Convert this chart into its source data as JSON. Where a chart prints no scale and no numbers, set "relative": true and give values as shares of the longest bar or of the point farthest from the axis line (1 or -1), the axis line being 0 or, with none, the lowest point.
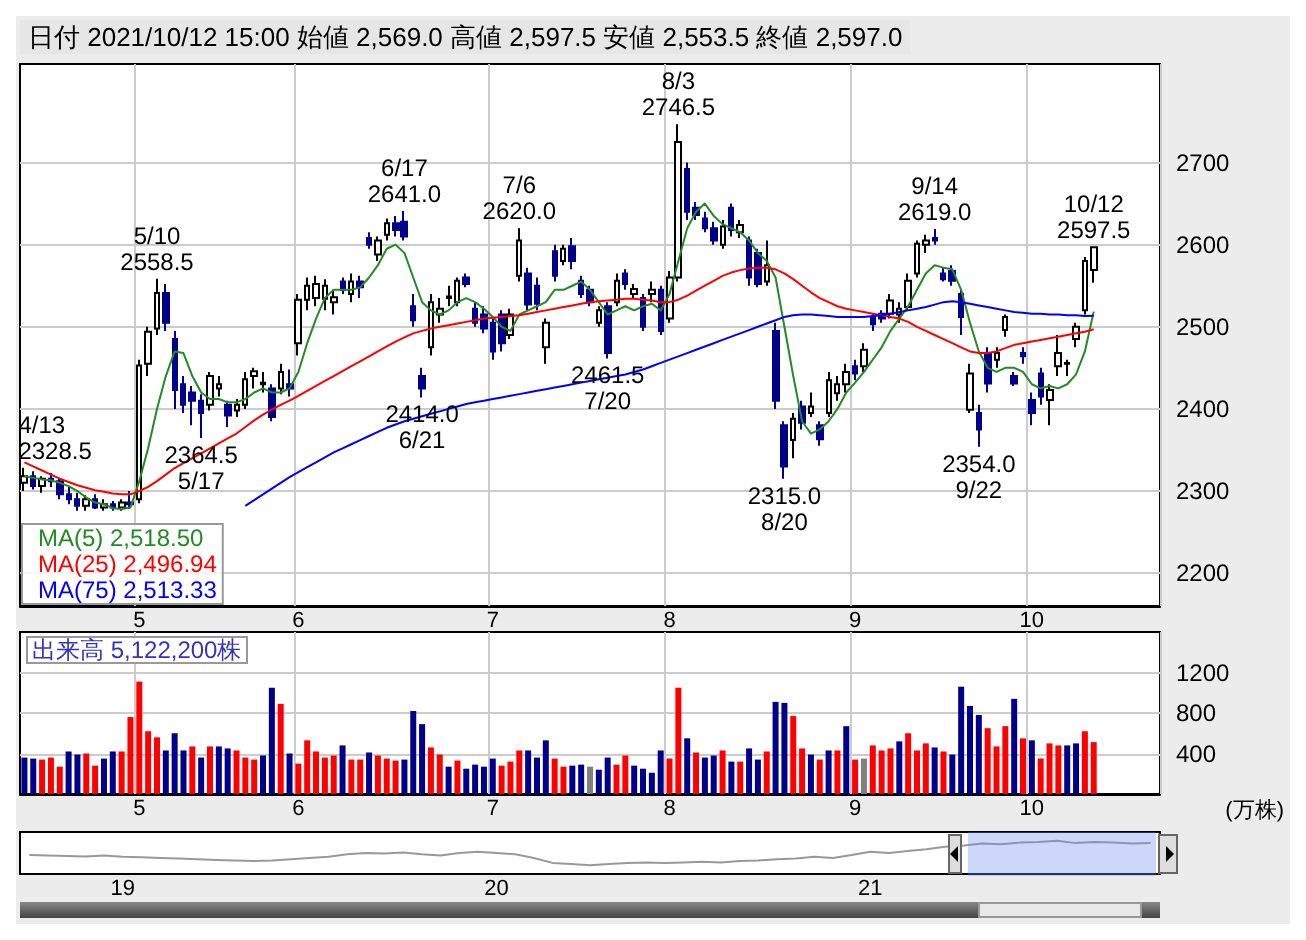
{
  "chart_data": [
    {
      "type": "candlestick",
      "title": "日付 2021/10/12 15:00 始値 2,569.0 高値 2,597.5 安値 2,553.5 終値 2,597.0",
      "categories": [
        null,
        null,
        null,
        null,
        null,
        null,
        null,
        null,
        null,
        null,
        null,
        null,
        null,
        "5",
        null,
        null,
        null,
        null,
        null,
        null,
        null,
        null,
        null,
        null,
        null,
        null,
        null,
        null,
        null,
        null,
        null,
        "6",
        null,
        null,
        null,
        null,
        null,
        null,
        null,
        null,
        null,
        null,
        null,
        null,
        null,
        null,
        null,
        null,
        null,
        null,
        null,
        null,
        null,
        "7",
        null,
        null,
        null,
        null,
        null,
        null,
        null,
        null,
        null,
        null,
        null,
        null,
        null,
        null,
        null,
        null,
        null,
        null,
        null,
        "8",
        null,
        null,
        null,
        null,
        null,
        null,
        null,
        null,
        null,
        null,
        null,
        null,
        null,
        null,
        null,
        null,
        null,
        null,
        null,
        null,
        "9",
        null,
        null,
        null,
        null,
        null,
        null,
        null,
        null,
        null,
        null,
        null,
        null,
        null,
        null,
        null,
        null,
        null,
        null,
        null,
        "10",
        null,
        null,
        null,
        null,
        null,
        null,
        null,
        null,
        null,
        null,
        null,
        null,
        null,
        null
      ],
      "ohlc": [
        [
          2310,
          2328.5,
          2300,
          2318
        ],
        [
          2318,
          2324,
          2302,
          2306
        ],
        [
          2306,
          2318,
          2298,
          2315
        ],
        [
          2315,
          2322,
          2305,
          2312
        ],
        [
          2312,
          2316,
          2290,
          2296
        ],
        [
          2296,
          2305,
          2284,
          2290
        ],
        [
          2290,
          2298,
          2276,
          2282
        ],
        [
          2282,
          2295,
          2276,
          2290
        ],
        [
          2290,
          2296,
          2278,
          2280
        ],
        [
          2280,
          2290,
          2276,
          2284
        ],
        [
          2284,
          2288,
          2276,
          2280
        ],
        [
          2280,
          2290,
          2276,
          2286
        ],
        [
          2286,
          2300,
          2278,
          2284
        ],
        [
          2290,
          2460,
          2285,
          2453
        ],
        [
          2455,
          2500,
          2440,
          2494
        ],
        [
          2498,
          2558.5,
          2490,
          2541
        ],
        [
          2541,
          2552,
          2495,
          2505
        ],
        [
          2485,
          2495,
          2400,
          2423
        ],
        [
          2430,
          2440,
          2395,
          2405
        ],
        [
          2420,
          2428,
          2380,
          2410
        ],
        [
          2410,
          2418,
          2364.5,
          2395
        ],
        [
          2405,
          2445,
          2398,
          2440
        ],
        [
          2425,
          2440,
          2415,
          2430
        ],
        [
          2405,
          2410,
          2378,
          2392
        ],
        [
          2398,
          2412,
          2390,
          2405
        ],
        [
          2405,
          2445,
          2400,
          2436
        ],
        [
          2440,
          2450,
          2425,
          2446
        ],
        [
          2430,
          2445,
          2420,
          2432
        ],
        [
          2425,
          2430,
          2385,
          2390
        ],
        [
          2425,
          2455,
          2418,
          2445
        ],
        [
          2430,
          2448,
          2415,
          2425
        ],
        [
          2480,
          2540,
          2465,
          2533
        ],
        [
          2533,
          2560,
          2520,
          2550
        ],
        [
          2535,
          2562,
          2525,
          2552
        ],
        [
          2534,
          2558,
          2520,
          2550
        ],
        [
          2530,
          2545,
          2515,
          2536
        ],
        [
          2555,
          2560,
          2540,
          2545
        ],
        [
          2540,
          2565,
          2530,
          2555
        ],
        [
          2555,
          2562,
          2535,
          2548
        ],
        [
          2608,
          2615,
          2595,
          2600
        ],
        [
          2588,
          2610,
          2580,
          2605
        ],
        [
          2612,
          2632,
          2605,
          2626
        ],
        [
          2626,
          2635,
          2610,
          2618
        ],
        [
          2628,
          2641,
          2605,
          2610
        ],
        [
          2525,
          2540,
          2500,
          2508
        ],
        [
          2440,
          2450,
          2414,
          2425
        ],
        [
          2475,
          2540,
          2465,
          2530
        ],
        [
          2515,
          2535,
          2505,
          2522
        ],
        [
          2535,
          2550,
          2525,
          2537
        ],
        [
          2530,
          2560,
          2525,
          2556
        ],
        [
          2560,
          2565,
          2548,
          2552
        ],
        [
          2522,
          2530,
          2500,
          2505
        ],
        [
          2515,
          2525,
          2492,
          2498
        ],
        [
          2505,
          2510,
          2460,
          2470
        ],
        [
          2515,
          2520,
          2470,
          2480
        ],
        [
          2490,
          2522,
          2485,
          2515
        ],
        [
          2562,
          2620,
          2555,
          2605
        ],
        [
          2565,
          2572,
          2520,
          2527
        ],
        [
          2550,
          2560,
          2520,
          2528
        ],
        [
          2475,
          2510,
          2455,
          2505
        ],
        [
          2592,
          2600,
          2555,
          2562
        ],
        [
          2580,
          2600,
          2575,
          2595
        ],
        [
          2598,
          2608,
          2570,
          2580
        ],
        [
          2556,
          2562,
          2535,
          2540
        ],
        [
          2545,
          2550,
          2525,
          2530
        ],
        [
          2505,
          2525,
          2500,
          2520
        ],
        [
          2525,
          2530,
          2461.5,
          2468
        ],
        [
          2530,
          2565,
          2525,
          2556
        ],
        [
          2565,
          2570,
          2545,
          2552
        ],
        [
          2540,
          2552,
          2535,
          2546
        ],
        [
          2535,
          2540,
          2495,
          2500
        ],
        [
          2540,
          2555,
          2530,
          2545
        ],
        [
          2545,
          2550,
          2490,
          2495
        ],
        [
          2510,
          2568,
          2505,
          2560
        ],
        [
          2560,
          2746.5,
          2555,
          2725
        ],
        [
          2692,
          2700,
          2630,
          2640
        ],
        [
          2645,
          2652,
          2630,
          2636
        ],
        [
          2632,
          2640,
          2615,
          2620
        ],
        [
          2620,
          2628,
          2600,
          2605
        ],
        [
          2600,
          2630,
          2595,
          2622
        ],
        [
          2645,
          2650,
          2610,
          2618
        ],
        [
          2615,
          2630,
          2608,
          2624
        ],
        [
          2605,
          2610,
          2550,
          2560
        ],
        [
          2590,
          2595,
          2548,
          2552
        ],
        [
          2555,
          2605,
          2550,
          2575
        ],
        [
          2495,
          2505,
          2400,
          2410
        ],
        [
          2380,
          2385,
          2315,
          2330
        ],
        [
          2362,
          2395,
          2340,
          2388
        ],
        [
          2403,
          2410,
          2375,
          2383
        ],
        [
          2395,
          2420,
          2390,
          2403
        ],
        [
          2380,
          2385,
          2355,
          2363
        ],
        [
          2395,
          2445,
          2390,
          2435
        ],
        [
          2419,
          2440,
          2410,
          2430
        ],
        [
          2430,
          2455,
          2420,
          2445
        ],
        [
          2452,
          2460,
          2435,
          2443
        ],
        [
          2452,
          2480,
          2445,
          2472
        ],
        [
          2512,
          2516,
          2495,
          2503
        ],
        [
          2516,
          2520,
          2505,
          2510
        ],
        [
          2516,
          2540,
          2510,
          2532
        ],
        [
          2515,
          2530,
          2505,
          2522
        ],
        [
          2524,
          2565,
          2520,
          2556
        ],
        [
          2565,
          2605,
          2560,
          2601
        ],
        [
          2600,
          2612,
          2590,
          2605
        ],
        [
          2608,
          2619,
          2600,
          2605
        ],
        [
          2565,
          2572,
          2555,
          2558
        ],
        [
          2568,
          2575,
          2550,
          2556
        ],
        [
          2540,
          2545,
          2490,
          2512
        ],
        [
          2399,
          2455,
          2395,
          2443
        ],
        [
          2395,
          2405,
          2354,
          2375
        ],
        [
          2468,
          2475,
          2420,
          2431
        ],
        [
          2460,
          2475,
          2450,
          2468
        ],
        [
          2496,
          2515,
          2488,
          2512
        ],
        [
          2440,
          2445,
          2428,
          2431
        ],
        [
          2468,
          2475,
          2455,
          2464
        ],
        [
          2411,
          2420,
          2380,
          2395
        ],
        [
          2443,
          2450,
          2405,
          2415
        ],
        [
          2411,
          2430,
          2380,
          2423
        ],
        [
          2452,
          2490,
          2440,
          2468
        ],
        [
          2455,
          2460,
          2440,
          2456
        ],
        [
          2485,
          2505,
          2475,
          2500
        ],
        [
          2520,
          2585,
          2515,
          2580
        ],
        [
          2569,
          2597.5,
          2553.5,
          2597
        ],
        null,
        null,
        null,
        null,
        null,
        null,
        null
      ],
      "series": [
        {
          "name": "MA(5) 2,518.50",
          "type": "line",
          "color": "#228b22",
          "values": [
            2318,
            2316,
            2314,
            2313,
            2310,
            2306,
            2300,
            2292,
            2286,
            2284,
            2279,
            2278,
            2280,
            2312,
            2352,
            2400,
            2440,
            2470,
            2468,
            2440,
            2420,
            2412,
            2412,
            2408,
            2408,
            2412,
            2420,
            2425,
            2420,
            2420,
            2425,
            2445,
            2480,
            2510,
            2535,
            2545,
            2545,
            2545,
            2548,
            2560,
            2575,
            2595,
            2600,
            2590,
            2560,
            2530,
            2520,
            2515,
            2520,
            2530,
            2535,
            2530,
            2522,
            2512,
            2500,
            2495,
            2515,
            2520,
            2525,
            2530,
            2545,
            2545,
            2550,
            2555,
            2545,
            2530,
            2515,
            2520,
            2525,
            2520,
            2525,
            2528,
            2520,
            2540,
            2580,
            2620,
            2640,
            2650,
            2635,
            2625,
            2620,
            2615,
            2605,
            2590,
            2580,
            2560,
            2500,
            2440,
            2385,
            2370,
            2375,
            2385,
            2400,
            2420,
            2432,
            2445,
            2460,
            2475,
            2495,
            2510,
            2525,
            2545,
            2565,
            2575,
            2572,
            2570,
            2545,
            2505,
            2470,
            2450,
            2445,
            2450,
            2450,
            2445,
            2430,
            2425,
            2428,
            2425,
            2430,
            2442,
            2470,
            2518.5,
            null,
            null,
            null,
            null,
            null,
            null,
            null
          ]
        },
        {
          "name": "MA(25) 2,496.94",
          "type": "line",
          "color": "#ff0000",
          "values": [
            2335,
            2330,
            2325,
            2320,
            2315,
            2311,
            2307,
            2304,
            2301,
            2299,
            2297,
            2296,
            2296,
            2300,
            2305,
            2312,
            2320,
            2328,
            2334,
            2340,
            2346,
            2352,
            2358,
            2364,
            2370,
            2378,
            2386,
            2393,
            2399,
            2405,
            2410,
            2416,
            2422,
            2428,
            2434,
            2440,
            2446,
            2452,
            2458,
            2464,
            2470,
            2476,
            2482,
            2487,
            2492,
            2495,
            2498,
            2500,
            2502,
            2504,
            2506,
            2508,
            2510,
            2511,
            2512,
            2513,
            2514,
            2516,
            2518,
            2520,
            2522,
            2524,
            2526,
            2528,
            2530,
            2531,
            2532,
            2533,
            2534,
            2534,
            2533,
            2532,
            2530,
            2530,
            2533,
            2538,
            2544,
            2550,
            2556,
            2562,
            2566,
            2569,
            2571,
            2572,
            2572,
            2570,
            2565,
            2558,
            2550,
            2542,
            2535,
            2530,
            2525,
            2522,
            2520,
            2518,
            2516,
            2514,
            2512,
            2510,
            2506,
            2500,
            2495,
            2490,
            2485,
            2480,
            2475,
            2470,
            2468,
            2468,
            2470,
            2474,
            2478,
            2480,
            2482,
            2484,
            2486,
            2488,
            2490,
            2492,
            2494,
            2496.94,
            null,
            null,
            null,
            null,
            null,
            null,
            null
          ]
        },
        {
          "name": "MA(75) 2,513.33",
          "type": "line",
          "color": "#0000ff",
          "values": [
            null,
            null,
            null,
            null,
            null,
            null,
            null,
            null,
            null,
            null,
            null,
            null,
            null,
            null,
            null,
            null,
            null,
            null,
            null,
            null,
            null,
            null,
            null,
            null,
            null,
            2282,
            2289,
            2296,
            2303,
            2310,
            2317,
            2323,
            2329,
            2335,
            2341,
            2347,
            2352,
            2357,
            2362,
            2367,
            2372,
            2377,
            2381,
            2385,
            2388,
            2391,
            2394,
            2397,
            2400,
            2403,
            2406,
            2408,
            2410,
            2412,
            2414,
            2416,
            2418,
            2420,
            2422,
            2424,
            2426,
            2428,
            2430,
            2432,
            2434,
            2436,
            2438,
            2440,
            2442,
            2445,
            2448,
            2452,
            2456,
            2460,
            2464,
            2468,
            2472,
            2476,
            2480,
            2484,
            2488,
            2492,
            2496,
            2500,
            2504,
            2508,
            2512,
            2514,
            2515,
            2515,
            2514,
            2513,
            2512,
            2512,
            2512,
            2512,
            2513,
            2514,
            2516,
            2518,
            2520,
            2522,
            2524,
            2527,
            2530,
            2531,
            2530,
            2528,
            2526,
            2524,
            2522,
            2520,
            2518,
            2517,
            2516,
            2516,
            2515,
            2515,
            2514,
            2514,
            2513,
            2513.33,
            null,
            null,
            null,
            null,
            null,
            null,
            null
          ]
        }
      ],
      "annotations": [
        {
          "text": "4/13\n2328.5",
          "y": 2328.5
        },
        {
          "text": "5/10\n2558.5",
          "y": 2558.5
        },
        {
          "text": "2364.5\n5/17",
          "y": 2364.5
        },
        {
          "text": "6/17\n2641.0",
          "y": 2641
        },
        {
          "text": "2414.0\n6/21",
          "y": 2414
        },
        {
          "text": "7/6\n2620.0",
          "y": 2620
        },
        {
          "text": "2461.5\n7/20",
          "y": 2461.5
        },
        {
          "text": "8/3\n2746.5",
          "y": 2746.5
        },
        {
          "text": "2315.0\n8/20",
          "y": 2315
        },
        {
          "text": "9/14\n2619.0",
          "y": 2619
        },
        {
          "text": "2354.0\n9/22",
          "y": 2354
        },
        {
          "text": "10/12\n2597.5",
          "y": 2597.5
        }
      ],
      "ylim": [
        2160,
        2820
      ],
      "yticks": [
        2200,
        2300,
        2400,
        2500,
        2600,
        2700
      ],
      "grid": true,
      "legend": "bottom left"
    },
    {
      "type": "bar",
      "title": "出来高 5,122,200株",
      "ylabel": "(万株)",
      "categories": [
        null,
        null,
        null,
        null,
        null,
        null,
        null,
        null,
        null,
        null,
        null,
        null,
        null,
        "5",
        null,
        null,
        null,
        null,
        null,
        null,
        null,
        null,
        null,
        null,
        null,
        null,
        null,
        null,
        null,
        null,
        null,
        "6",
        null,
        null,
        null,
        null,
        null,
        null,
        null,
        null,
        null,
        null,
        null,
        null,
        null,
        null,
        null,
        null,
        null,
        null,
        null,
        null,
        null,
        "7",
        null,
        null,
        null,
        null,
        null,
        null,
        null,
        null,
        null,
        null,
        null,
        null,
        null,
        null,
        null,
        null,
        null,
        null,
        null,
        "8",
        null,
        null,
        null,
        null,
        null,
        null,
        null,
        null,
        null,
        null,
        null,
        null,
        null,
        null,
        null,
        null,
        null,
        null,
        null,
        null,
        "9",
        null,
        null,
        null,
        null,
        null,
        null,
        null,
        null,
        null,
        null,
        null,
        null,
        null,
        null,
        null,
        null,
        null,
        null,
        null,
        "10",
        null,
        null,
        null,
        null,
        null,
        null,
        null,
        null,
        null,
        null,
        null,
        null,
        null,
        null
      ],
      "values": [
        360,
        350,
        340,
        360,
        270,
        420,
        390,
        400,
        280,
        350,
        420,
        420,
        760,
        1110,
        620,
        560,
        430,
        600,
        430,
        470,
        360,
        470,
        470,
        450,
        430,
        360,
        340,
        380,
        1050,
        890,
        400,
        300,
        530,
        420,
        360,
        380,
        480,
        340,
        340,
        410,
        380,
        350,
        330,
        340,
        820,
        690,
        460,
        390,
        270,
        330,
        250,
        290,
        270,
        350,
        280,
        320,
        430,
        430,
        360,
        530,
        350,
        270,
        280,
        290,
        270,
        240,
        360,
        290,
        380,
        280,
        250,
        210,
        430,
        350,
        1050,
        550,
        410,
        360,
        380,
        430,
        320,
        320,
        450,
        340,
        420,
        910,
        900,
        770,
        450,
        390,
        340,
        430,
        430,
        670,
        340,
        350,
        480,
        430,
        450,
        520,
        600,
        430,
        500,
        460,
        420,
        390,
        1060,
        870,
        780,
        650,
        470,
        670,
        940,
        550,
        530,
        350,
        500,
        480,
        480,
        500,
        620,
        512.22,
        null,
        null,
        null,
        null,
        null,
        null,
        null
      ],
      "colors": [
        "#00008b",
        "#00008b",
        "#ff0000",
        "#ff0000",
        "#ff0000",
        "#00008b",
        "#00008b",
        "#ff0000",
        "#ff0000",
        "#00008b",
        "#00008b",
        "#ff0000",
        "#ff0000",
        "#ff0000",
        "#ff0000",
        "#ff0000",
        "#00008b",
        "#00008b",
        "#00008b",
        "#ff0000",
        "#00008b",
        "#ff0000",
        "#00008b",
        "#00008b",
        "#ff0000",
        "#ff0000",
        "#ff0000",
        "#00008b",
        "#00008b",
        "#ff0000",
        "#00008b",
        "#ff0000",
        "#ff0000",
        "#ff0000",
        "#ff0000",
        "#ff0000",
        "#00008b",
        "#ff0000",
        "#ff0000",
        "#00008b",
        "#ff0000",
        "#ff0000",
        "#ff0000",
        "#00008b",
        "#00008b",
        "#00008b",
        "#ff0000",
        "#ff0000",
        "#00008b",
        "#ff0000",
        "#00008b",
        "#00008b",
        "#00008b",
        "#00008b",
        "#ff0000",
        "#ff0000",
        "#ff0000",
        "#00008b",
        "#00008b",
        "#00008b",
        "#ff0000",
        "#ff0000",
        "#00008b",
        "#00008b",
        "#808080",
        "#00008b",
        "#00008b",
        "#ff0000",
        "#ff0000",
        "#00008b",
        "#00008b",
        "#00008b",
        "#00008b",
        "#ff0000",
        "#ff0000",
        "#00008b",
        "#ff0000",
        "#00008b",
        "#00008b",
        "#ff0000",
        "#00008b",
        "#ff0000",
        "#00008b",
        "#00008b",
        "#ff0000",
        "#00008b",
        "#00008b",
        "#ff0000",
        "#ff0000",
        "#00008b",
        "#ff0000",
        "#00008b",
        "#ff0000",
        "#00008b",
        "#ff0000",
        "#808080",
        "#ff0000",
        "#ff0000",
        "#ff0000",
        "#00008b",
        "#ff0000",
        "#ff0000",
        "#ff0000",
        "#00008b",
        "#ff0000",
        "#00008b",
        "#00008b",
        "#00008b",
        "#00008b",
        "#ff0000",
        "#ff0000",
        "#ff0000",
        "#00008b",
        "#ff0000",
        "#00008b",
        "#ff0000",
        "#ff0000",
        "#ff0000",
        "#00008b",
        "#00008b",
        "#ff0000",
        "#ff0000",
        null,
        null,
        null,
        null,
        null,
        null,
        null
      ],
      "ylim": [
        0,
        1600
      ],
      "yticks": [
        400,
        800,
        1200
      ],
      "grid": true
    },
    {
      "type": "line",
      "relative": true,
      "color": "#999999",
      "categories": [
        null,
        null,
        null,
        null,
        null,
        "19",
        null,
        null,
        null,
        null,
        null,
        null,
        null,
        null,
        null,
        null,
        null,
        null,
        null,
        null,
        null,
        null,
        null,
        null,
        null,
        "20",
        null,
        null,
        null,
        null,
        null,
        null,
        null,
        null,
        null,
        null,
        null,
        null,
        null,
        null,
        null,
        null,
        null,
        null,
        null,
        "21",
        null,
        null,
        null,
        null,
        null,
        null,
        null,
        null,
        null,
        null,
        null,
        null,
        null,
        null,
        null
      ],
      "values": [
        0.42,
        0.4,
        0.38,
        0.36,
        0.4,
        0.35,
        0.33,
        0.3,
        0.28,
        0.25,
        0.22,
        0.2,
        0.18,
        0.2,
        0.25,
        0.3,
        0.35,
        0.45,
        0.5,
        0.48,
        0.52,
        0.45,
        0.4,
        0.5,
        0.55,
        0.5,
        0.45,
        0.3,
        0.1,
        0.05,
        0,
        0.05,
        0.1,
        0.12,
        0.1,
        0.12,
        0.15,
        0.12,
        0.18,
        0.2,
        0.25,
        0.28,
        0.35,
        0.3,
        0.42,
        0.55,
        0.5,
        0.58,
        0.65,
        0.75,
        0.8,
        0.88,
        0.85,
        0.92,
        0.95,
        1,
        0.9,
        0.95,
        0.92,
        0.88,
        0.9
      ]
    }
  ]
}
